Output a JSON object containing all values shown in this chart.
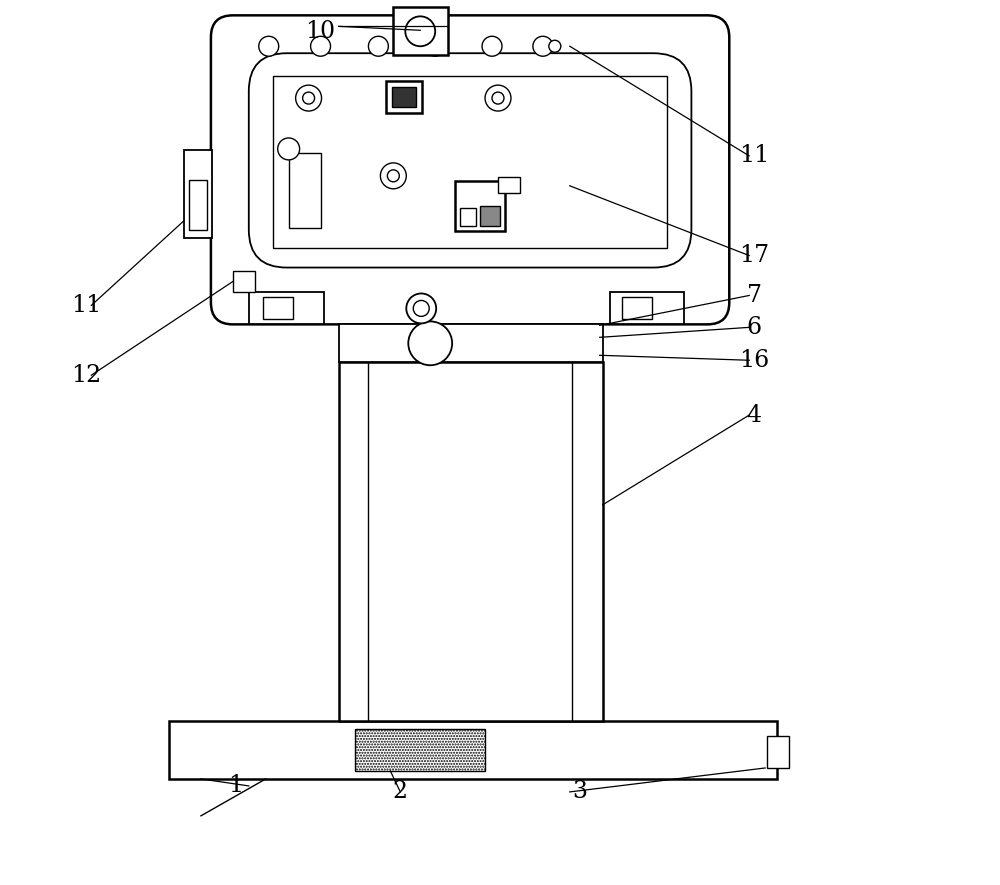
{
  "bg_color": "#ffffff",
  "line_color": "#000000",
  "label_color": "#000000",
  "fig_width": 10.0,
  "fig_height": 8.85,
  "labels": [
    [
      "10",
      320,
      855
    ],
    [
      "11",
      755,
      730
    ],
    [
      "17",
      755,
      630
    ],
    [
      "7",
      755,
      590
    ],
    [
      "6",
      755,
      558
    ],
    [
      "16",
      755,
      525
    ],
    [
      "4",
      755,
      470
    ],
    [
      "11",
      85,
      580
    ],
    [
      "12",
      85,
      510
    ],
    [
      "1",
      235,
      98
    ],
    [
      "2",
      400,
      92
    ],
    [
      "3",
      580,
      92
    ]
  ]
}
